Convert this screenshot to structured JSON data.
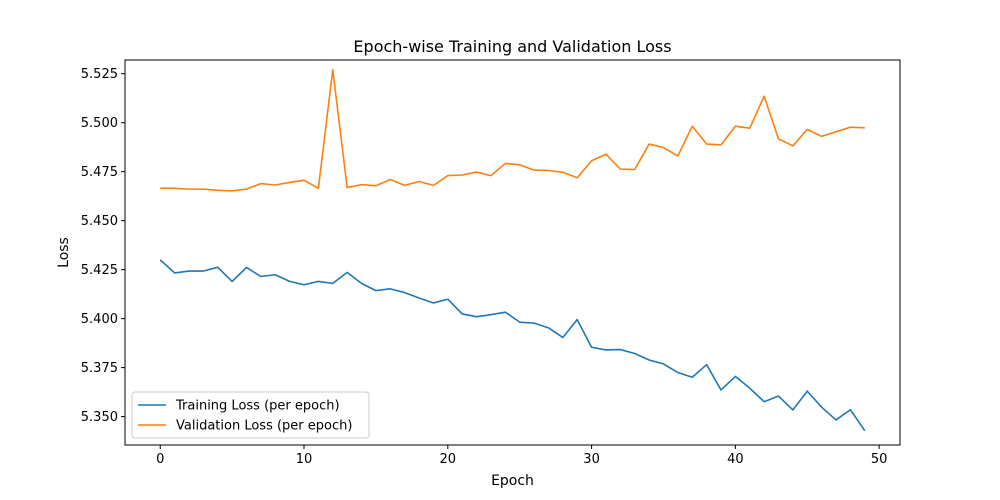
{
  "chart_data": {
    "type": "line",
    "title": "Epoch-wise Training and Validation Loss",
    "xlabel": "Epoch",
    "ylabel": "Loss",
    "xlim": [
      -2.45,
      51.45
    ],
    "ylim": [
      5.3355,
      5.532
    ],
    "xticks": [
      0,
      10,
      20,
      30,
      40,
      50
    ],
    "yticks": [
      5.35,
      5.375,
      5.4,
      5.425,
      5.45,
      5.475,
      5.5,
      5.525
    ],
    "ytick_labels": [
      "5.350",
      "5.375",
      "5.400",
      "5.425",
      "5.450",
      "5.475",
      "5.500",
      "5.525"
    ],
    "grid": false,
    "legend_position": "lower-left",
    "x": [
      0,
      1,
      2,
      3,
      4,
      5,
      6,
      7,
      8,
      9,
      10,
      11,
      12,
      13,
      14,
      15,
      16,
      17,
      18,
      19,
      20,
      21,
      22,
      23,
      24,
      25,
      26,
      27,
      28,
      29,
      30,
      31,
      32,
      33,
      34,
      35,
      36,
      37,
      38,
      39,
      40,
      41,
      42,
      43,
      44,
      45,
      46,
      47,
      48,
      49
    ],
    "series": [
      {
        "name": "Training Loss (per epoch)",
        "color": "#1f77b4",
        "values": [
          5.43,
          5.4233,
          5.4243,
          5.4243,
          5.4262,
          5.419,
          5.4261,
          5.4215,
          5.4224,
          5.419,
          5.4173,
          5.419,
          5.418,
          5.4236,
          5.418,
          5.4143,
          5.4152,
          5.4133,
          5.4105,
          5.408,
          5.4099,
          5.4024,
          5.401,
          5.402,
          5.4033,
          5.3982,
          5.3977,
          5.3953,
          5.3904,
          5.3995,
          5.3854,
          5.384,
          5.3842,
          5.3822,
          5.3789,
          5.3769,
          5.3725,
          5.3701,
          5.3765,
          5.3636,
          5.3705,
          5.3645,
          5.3576,
          5.3605,
          5.3534,
          5.363,
          5.3548,
          5.3483,
          5.3535,
          5.3428
        ]
      },
      {
        "name": "Validation Loss (per epoch)",
        "color": "#ff7f0e",
        "values": [
          5.4666,
          5.4665,
          5.4661,
          5.4661,
          5.4655,
          5.4652,
          5.4661,
          5.4689,
          5.4682,
          5.4695,
          5.4706,
          5.4665,
          5.527,
          5.4669,
          5.4684,
          5.4678,
          5.471,
          5.468,
          5.47,
          5.468,
          5.473,
          5.4733,
          5.4748,
          5.473,
          5.4792,
          5.4785,
          5.4758,
          5.4756,
          5.4747,
          5.4719,
          5.4806,
          5.4839,
          5.4763,
          5.4761,
          5.4891,
          5.4873,
          5.483,
          5.4982,
          5.4891,
          5.4887,
          5.4982,
          5.4972,
          5.5135,
          5.4917,
          5.4882,
          5.4966,
          5.493,
          5.4954,
          5.4977,
          5.4974
        ]
      }
    ]
  }
}
